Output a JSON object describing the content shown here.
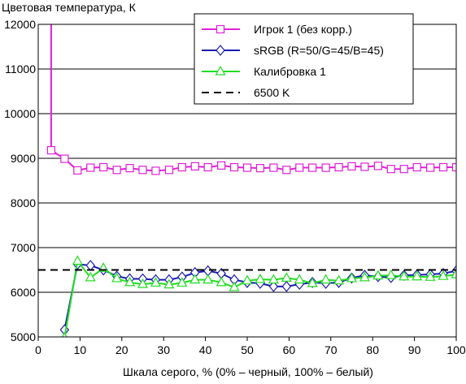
{
  "chart_data": {
    "type": "line",
    "title": "",
    "ylabel": "Цветовая температура, К",
    "xlabel": "Шкала серого, % (0% – черный, 100% – белый)",
    "xlim": [
      0,
      100
    ],
    "ylim": [
      5000,
      12000
    ],
    "x_ticks": [
      0,
      10,
      20,
      30,
      40,
      50,
      60,
      70,
      80,
      90,
      100
    ],
    "y_ticks": [
      5000,
      6000,
      7000,
      8000,
      9000,
      10000,
      11000,
      12000
    ],
    "grid": "horizontal",
    "legend_position": "top-right",
    "series": [
      {
        "name": "Игрок 1 (без корр.)",
        "color": "#e020d8",
        "marker": "square",
        "line_style": "solid",
        "x": [
          3.1,
          6.3,
          9.4,
          12.5,
          15.6,
          18.8,
          21.9,
          25,
          28.1,
          31.3,
          34.4,
          37.5,
          40.6,
          43.8,
          46.9,
          50,
          53.1,
          56.3,
          59.4,
          62.5,
          65.6,
          68.8,
          71.9,
          75,
          78.1,
          81.3,
          84.4,
          87.5,
          90.6,
          93.8,
          96.9,
          100
        ],
        "y": [
          9180,
          8990,
          8730,
          8790,
          8800,
          8740,
          8780,
          8740,
          8720,
          8740,
          8800,
          8820,
          8800,
          8840,
          8800,
          8790,
          8780,
          8790,
          8740,
          8790,
          8790,
          8790,
          8800,
          8820,
          8810,
          8830,
          8760,
          8760,
          8800,
          8790,
          8800,
          8800
        ],
        "y_extension_above": 12000
      },
      {
        "name": "sRGB (R=50/G=45/B=45)",
        "color": "#1a1ab0",
        "marker": "diamond",
        "line_style": "solid",
        "x": [
          6.3,
          9.4,
          12.5,
          15.6,
          18.8,
          21.9,
          25,
          28.1,
          31.3,
          34.4,
          37.5,
          40.6,
          43.8,
          46.9,
          50,
          53.1,
          56.3,
          59.4,
          62.5,
          65.6,
          68.8,
          71.9,
          75,
          78.1,
          81.3,
          84.4,
          87.5,
          90.6,
          93.8,
          96.9,
          100
        ],
        "y": [
          5160,
          6630,
          6600,
          6500,
          6360,
          6300,
          6300,
          6280,
          6280,
          6340,
          6440,
          6480,
          6420,
          6280,
          6220,
          6200,
          6130,
          6130,
          6180,
          6220,
          6200,
          6220,
          6320,
          6380,
          6350,
          6330,
          6380,
          6390,
          6400,
          6420,
          6480
        ]
      },
      {
        "name": "Калибровка 1",
        "color": "#22dd22",
        "marker": "triangle",
        "line_style": "solid",
        "x": [
          6.3,
          9.4,
          12.5,
          15.6,
          18.8,
          21.9,
          25,
          28.1,
          31.3,
          34.4,
          37.5,
          40.6,
          43.8,
          46.9,
          50,
          53.1,
          56.3,
          59.4,
          62.5,
          65.6,
          68.8,
          71.9,
          75,
          78.1,
          81.3,
          84.4,
          87.5,
          90.6,
          93.8,
          96.9,
          100
        ],
        "y": [
          4980,
          6700,
          6330,
          6540,
          6310,
          6220,
          6180,
          6210,
          6170,
          6210,
          6280,
          6280,
          6220,
          6110,
          6260,
          6290,
          6280,
          6320,
          6280,
          6200,
          6280,
          6260,
          6310,
          6330,
          6370,
          6380,
          6350,
          6350,
          6340,
          6360,
          6400
        ]
      },
      {
        "name": "6500 K",
        "color": "#000000",
        "marker": "none",
        "line_style": "dashed",
        "x": [
          0,
          100
        ],
        "y": [
          6500,
          6500
        ]
      }
    ]
  }
}
